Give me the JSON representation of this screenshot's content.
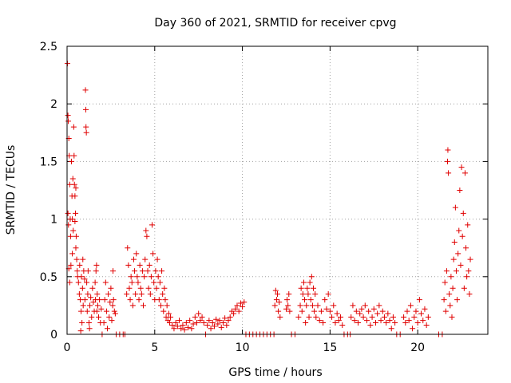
{
  "chart_data": {
    "type": "scatter",
    "title": "Day 360 of 2021, SRMTID for receiver cpvg",
    "xlabel": "GPS time / hours",
    "ylabel": "SRMTID / TECUs",
    "xlim": [
      0,
      24
    ],
    "ylim": [
      0,
      2.5
    ],
    "xticks": [
      0,
      5,
      10,
      15,
      20
    ],
    "xtick_labels": [
      "0",
      "5",
      "10",
      "15",
      "20"
    ],
    "yticks": [
      0,
      0.5,
      1,
      1.5,
      2,
      2.5
    ],
    "ytick_labels": [
      "0",
      "0.5",
      "1",
      "1.5",
      "2",
      "2.5"
    ],
    "grid": true,
    "marker": "+",
    "series": [
      {
        "name": "SRMTID",
        "color": "#e00000",
        "points": [
          [
            0.02,
            2.35
          ],
          [
            0.05,
            1.9
          ],
          [
            0.07,
            1.85
          ],
          [
            0.1,
            1.7
          ],
          [
            0.12,
            1.55
          ],
          [
            0.15,
            1.3
          ],
          [
            0.18,
            1.0
          ],
          [
            0.2,
            0.85
          ],
          [
            0.22,
            0.6
          ],
          [
            0.25,
            1.5
          ],
          [
            0.28,
            1.2
          ],
          [
            0.3,
            1.0
          ],
          [
            0.33,
            1.35
          ],
          [
            0.35,
            0.9
          ],
          [
            0.38,
            1.8
          ],
          [
            0.4,
            1.55
          ],
          [
            0.42,
            1.3
          ],
          [
            0.45,
            1.2
          ],
          [
            0.48,
            1.05
          ],
          [
            0.5,
            0.75
          ],
          [
            0.52,
            0.85
          ],
          [
            0.55,
            0.65
          ],
          [
            0.58,
            0.55
          ],
          [
            0.6,
            0.5
          ],
          [
            0.1,
            0.57
          ],
          [
            0.15,
            0.45
          ],
          [
            0.3,
            0.7
          ],
          [
            0.45,
            0.98
          ],
          [
            0.5,
            1.27
          ],
          [
            0.05,
            1.05
          ],
          [
            0.08,
            0.95
          ],
          [
            0.65,
            0.45
          ],
          [
            0.7,
            0.35
          ],
          [
            0.72,
            0.6
          ],
          [
            0.75,
            0.3
          ],
          [
            0.8,
            0.2
          ],
          [
            0.82,
            0.5
          ],
          [
            0.85,
            0.1
          ],
          [
            0.88,
            0.4
          ],
          [
            0.9,
            0.65
          ],
          [
            0.92,
            0.25
          ],
          [
            0.95,
            0.55
          ],
          [
            1.0,
            0.48
          ],
          [
            1.02,
            0.3
          ],
          [
            1.05,
            2.12
          ],
          [
            1.07,
            1.95
          ],
          [
            1.08,
            1.8
          ],
          [
            1.1,
            1.75
          ],
          [
            1.12,
            0.45
          ],
          [
            1.15,
            0.2
          ],
          [
            1.18,
            0.35
          ],
          [
            1.2,
            0.55
          ],
          [
            1.25,
            0.1
          ],
          [
            1.28,
            0.05
          ],
          [
            0.78,
            0.03
          ],
          [
            1.3,
            0.25
          ],
          [
            1.35,
            0.32
          ],
          [
            1.4,
            0.15
          ],
          [
            1.45,
            0.4
          ],
          [
            1.5,
            0.28
          ],
          [
            1.55,
            0.2
          ],
          [
            1.6,
            0.45
          ],
          [
            1.62,
            0.3
          ],
          [
            1.65,
            0.55
          ],
          [
            1.68,
            0.6
          ],
          [
            1.7,
            0.2
          ],
          [
            1.72,
            0.35
          ],
          [
            1.75,
            0.25
          ],
          [
            1.8,
            0.15
          ],
          [
            1.85,
            0.3
          ],
          [
            1.9,
            0.1
          ],
          [
            1.95,
            0.22
          ],
          [
            2.0,
            0.0
          ],
          [
            2.1,
            0.1
          ],
          [
            2.15,
            0.3
          ],
          [
            2.2,
            0.45
          ],
          [
            2.25,
            0.2
          ],
          [
            2.3,
            0.05
          ],
          [
            2.35,
            0.35
          ],
          [
            2.4,
            0.15
          ],
          [
            2.45,
            0.28
          ],
          [
            2.5,
            0.4
          ],
          [
            2.55,
            0.12
          ],
          [
            2.6,
            0.25
          ],
          [
            2.62,
            0.55
          ],
          [
            2.65,
            0.3
          ],
          [
            2.7,
            0.2
          ],
          [
            2.75,
            0.18
          ],
          [
            2.8,
            0.0
          ],
          [
            3.0,
            0.0
          ],
          [
            3.2,
            0.0
          ],
          [
            3.3,
            0.0
          ],
          [
            3.4,
            0.35
          ],
          [
            3.45,
            0.75
          ],
          [
            3.5,
            0.6
          ],
          [
            3.55,
            0.4
          ],
          [
            3.6,
            0.3
          ],
          [
            3.65,
            0.5
          ],
          [
            3.7,
            0.45
          ],
          [
            3.75,
            0.25
          ],
          [
            3.8,
            0.65
          ],
          [
            3.85,
            0.55
          ],
          [
            3.9,
            0.35
          ],
          [
            3.95,
            0.7
          ],
          [
            4.0,
            0.5
          ],
          [
            4.05,
            0.45
          ],
          [
            4.1,
            0.3
          ],
          [
            4.15,
            0.6
          ],
          [
            4.2,
            0.4
          ],
          [
            4.25,
            0.35
          ],
          [
            4.3,
            0.55
          ],
          [
            4.35,
            0.25
          ],
          [
            4.4,
            0.5
          ],
          [
            4.45,
            0.65
          ],
          [
            4.5,
            0.9
          ],
          [
            4.55,
            0.85
          ],
          [
            4.6,
            0.55
          ],
          [
            4.65,
            0.4
          ],
          [
            4.7,
            0.6
          ],
          [
            4.75,
            0.35
          ],
          [
            4.8,
            0.5
          ],
          [
            4.85,
            0.95
          ],
          [
            4.9,
            0.7
          ],
          [
            4.95,
            0.45
          ],
          [
            5.0,
            0.3
          ],
          [
            5.05,
            0.55
          ],
          [
            5.1,
            0.4
          ],
          [
            5.15,
            0.65
          ],
          [
            5.2,
            0.5
          ],
          [
            5.25,
            0.3
          ],
          [
            5.3,
            0.45
          ],
          [
            5.35,
            0.25
          ],
          [
            5.4,
            0.55
          ],
          [
            5.45,
            0.35
          ],
          [
            5.5,
            0.2
          ],
          [
            5.55,
            0.4
          ],
          [
            5.6,
            0.3
          ],
          [
            5.65,
            0.15
          ],
          [
            5.7,
            0.25
          ],
          [
            5.75,
            0.12
          ],
          [
            5.8,
            0.18
          ],
          [
            5.85,
            0.1
          ],
          [
            5.9,
            0.15
          ],
          [
            6.0,
            0.08
          ],
          [
            6.1,
            0.05
          ],
          [
            6.2,
            0.1
          ],
          [
            6.3,
            0.07
          ],
          [
            6.4,
            0.12
          ],
          [
            6.5,
            0.05
          ],
          [
            6.6,
            0.08
          ],
          [
            6.7,
            0.04
          ],
          [
            6.8,
            0.1
          ],
          [
            6.9,
            0.06
          ],
          [
            7.0,
            0.12
          ],
          [
            7.1,
            0.05
          ],
          [
            7.2,
            0.09
          ],
          [
            7.3,
            0.15
          ],
          [
            7.4,
            0.1
          ],
          [
            7.5,
            0.18
          ],
          [
            7.6,
            0.12
          ],
          [
            7.7,
            0.15
          ],
          [
            7.8,
            0.1
          ],
          [
            7.9,
            0.0
          ],
          [
            8.0,
            0.08
          ],
          [
            8.1,
            0.12
          ],
          [
            8.2,
            0.05
          ],
          [
            8.3,
            0.1
          ],
          [
            8.4,
            0.07
          ],
          [
            8.5,
            0.13
          ],
          [
            8.6,
            0.09
          ],
          [
            8.7,
            0.12
          ],
          [
            8.8,
            0.06
          ],
          [
            8.9,
            0.1
          ],
          [
            9.0,
            0.14
          ],
          [
            9.1,
            0.08
          ],
          [
            9.2,
            0.12
          ],
          [
            9.3,
            0.15
          ],
          [
            9.4,
            0.2
          ],
          [
            9.5,
            0.18
          ],
          [
            9.6,
            0.22
          ],
          [
            9.7,
            0.25
          ],
          [
            9.8,
            0.2
          ],
          [
            9.9,
            0.27
          ],
          [
            10.0,
            0.24
          ],
          [
            10.1,
            0.28
          ],
          [
            10.2,
            0.0
          ],
          [
            10.4,
            0.0
          ],
          [
            10.6,
            0.0
          ],
          [
            10.8,
            0.0
          ],
          [
            11.0,
            0.0
          ],
          [
            11.2,
            0.0
          ],
          [
            11.4,
            0.0
          ],
          [
            11.6,
            0.0
          ],
          [
            11.8,
            0.0
          ],
          [
            11.85,
            0.25
          ],
          [
            11.9,
            0.38
          ],
          [
            11.95,
            0.3
          ],
          [
            12.0,
            0.35
          ],
          [
            12.05,
            0.2
          ],
          [
            12.1,
            0.28
          ],
          [
            12.15,
            0.15
          ],
          [
            12.5,
            0.22
          ],
          [
            12.55,
            0.3
          ],
          [
            12.6,
            0.25
          ],
          [
            12.65,
            0.35
          ],
          [
            12.7,
            0.2
          ],
          [
            12.8,
            0.0
          ],
          [
            13.0,
            0.0
          ],
          [
            13.2,
            0.15
          ],
          [
            13.3,
            0.25
          ],
          [
            13.35,
            0.4
          ],
          [
            13.4,
            0.2
          ],
          [
            13.45,
            0.35
          ],
          [
            13.5,
            0.45
          ],
          [
            13.55,
            0.3
          ],
          [
            13.6,
            0.1
          ],
          [
            13.65,
            0.25
          ],
          [
            13.7,
            0.4
          ],
          [
            13.75,
            0.35
          ],
          [
            13.8,
            0.15
          ],
          [
            13.85,
            0.45
          ],
          [
            13.9,
            0.3
          ],
          [
            13.95,
            0.5
          ],
          [
            14.0,
            0.25
          ],
          [
            14.05,
            0.4
          ],
          [
            14.1,
            0.2
          ],
          [
            14.15,
            0.35
          ],
          [
            14.2,
            0.15
          ],
          [
            14.3,
            0.25
          ],
          [
            14.4,
            0.12
          ],
          [
            14.5,
            0.2
          ],
          [
            14.6,
            0.1
          ],
          [
            14.7,
            0.3
          ],
          [
            14.8,
            0.22
          ],
          [
            14.9,
            0.35
          ],
          [
            15.0,
            0.2
          ],
          [
            15.1,
            0.15
          ],
          [
            15.2,
            0.25
          ],
          [
            15.3,
            0.1
          ],
          [
            15.4,
            0.18
          ],
          [
            15.5,
            0.12
          ],
          [
            15.6,
            0.15
          ],
          [
            15.7,
            0.08
          ],
          [
            15.8,
            0.0
          ],
          [
            16.0,
            0.0
          ],
          [
            16.15,
            0.0
          ],
          [
            16.2,
            0.15
          ],
          [
            16.3,
            0.25
          ],
          [
            16.4,
            0.12
          ],
          [
            16.5,
            0.2
          ],
          [
            16.6,
            0.1
          ],
          [
            16.7,
            0.18
          ],
          [
            16.8,
            0.22
          ],
          [
            16.9,
            0.15
          ],
          [
            17.0,
            0.25
          ],
          [
            17.1,
            0.12
          ],
          [
            17.2,
            0.2
          ],
          [
            17.3,
            0.08
          ],
          [
            17.4,
            0.15
          ],
          [
            17.5,
            0.22
          ],
          [
            17.6,
            0.1
          ],
          [
            17.7,
            0.18
          ],
          [
            17.8,
            0.25
          ],
          [
            17.9,
            0.12
          ],
          [
            18.0,
            0.2
          ],
          [
            18.1,
            0.15
          ],
          [
            18.2,
            0.1
          ],
          [
            18.3,
            0.18
          ],
          [
            18.4,
            0.12
          ],
          [
            18.5,
            0.05
          ],
          [
            18.6,
            0.15
          ],
          [
            18.7,
            0.1
          ],
          [
            18.8,
            0.0
          ],
          [
            19.0,
            0.0
          ],
          [
            19.2,
            0.15
          ],
          [
            19.3,
            0.1
          ],
          [
            19.4,
            0.2
          ],
          [
            19.5,
            0.12
          ],
          [
            19.6,
            0.25
          ],
          [
            19.7,
            0.05
          ],
          [
            19.8,
            0.15
          ],
          [
            19.9,
            0.2
          ],
          [
            20.0,
            0.1
          ],
          [
            20.1,
            0.3
          ],
          [
            20.2,
            0.18
          ],
          [
            20.3,
            0.12
          ],
          [
            20.4,
            0.22
          ],
          [
            20.5,
            0.08
          ],
          [
            20.6,
            0.15
          ],
          [
            21.2,
            0.0
          ],
          [
            21.4,
            0.0
          ],
          [
            21.5,
            0.3
          ],
          [
            21.55,
            0.45
          ],
          [
            21.6,
            0.2
          ],
          [
            21.65,
            0.55
          ],
          [
            21.7,
            1.5
          ],
          [
            21.72,
            1.6
          ],
          [
            21.75,
            1.4
          ],
          [
            21.8,
            0.35
          ],
          [
            21.85,
            0.25
          ],
          [
            21.9,
            0.5
          ],
          [
            21.95,
            0.15
          ],
          [
            22.0,
            0.4
          ],
          [
            22.05,
            0.65
          ],
          [
            22.1,
            0.8
          ],
          [
            22.15,
            1.1
          ],
          [
            22.2,
            0.55
          ],
          [
            22.25,
            0.3
          ],
          [
            22.3,
            0.7
          ],
          [
            22.35,
            0.9
          ],
          [
            22.4,
            1.25
          ],
          [
            22.45,
            0.6
          ],
          [
            22.5,
            1.45
          ],
          [
            22.55,
            0.85
          ],
          [
            22.6,
            1.05
          ],
          [
            22.65,
            0.4
          ],
          [
            22.7,
            1.4
          ],
          [
            22.75,
            0.75
          ],
          [
            22.8,
            0.5
          ],
          [
            22.85,
            0.95
          ],
          [
            22.9,
            0.55
          ],
          [
            22.95,
            0.35
          ],
          [
            23.0,
            0.65
          ]
        ]
      }
    ]
  }
}
